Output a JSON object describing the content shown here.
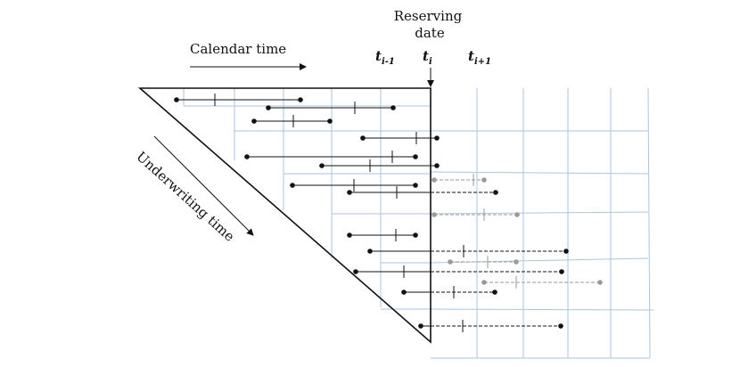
{
  "labels": {
    "calendar_time": "Calendar time",
    "reserving_date_line1": "Reserving",
    "reserving_date_line2": "date",
    "t_prev": {
      "base": "t",
      "sub": "i-1"
    },
    "t_curr": {
      "base": "t",
      "sub": "i"
    },
    "t_next": {
      "base": "t",
      "sub": "i+1"
    },
    "underwriting_time": "Underwriting time"
  },
  "colors": {
    "grid": "#a9c6df",
    "claim_solid": "#111111",
    "claim_grey": "#9a9a9a"
  }
}
